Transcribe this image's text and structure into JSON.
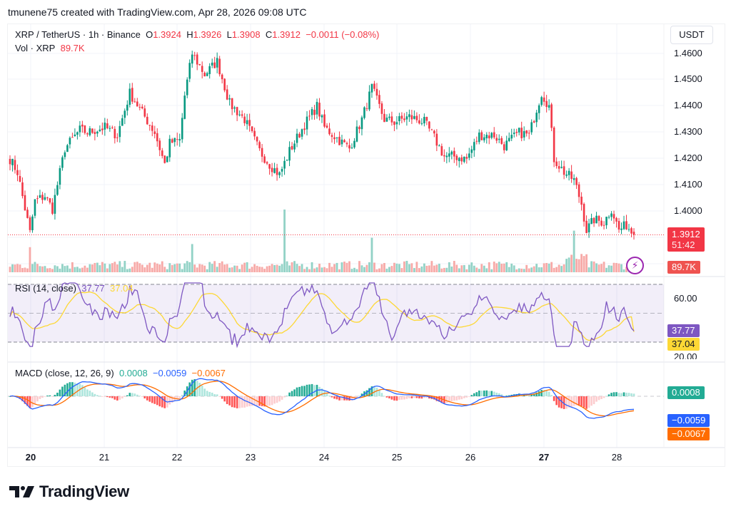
{
  "credit": "tmunene75 created with TradingView.com, Apr 28, 2026 09:08 UTC",
  "header": {
    "symbol_line": "XRP / TetherUS · 1h · Binance",
    "o_label": "O",
    "o_value": "1.3924",
    "h_label": "H",
    "h_value": "1.3926",
    "l_label": "L",
    "l_value": "1.3908",
    "c_label": "C",
    "c_value": "1.3912",
    "change": "−0.0011 (−0.08%)",
    "vol_label": "Vol · XRP",
    "vol_value": "89.7K"
  },
  "currency_button": "USDT",
  "price_axis": [
    "1.4600",
    "1.4500",
    "1.4400",
    "1.4300",
    "1.4200",
    "1.4100",
    "1.4000"
  ],
  "last_price_tag": {
    "price": "1.3912",
    "countdown": "51:42",
    "color": "#f23645"
  },
  "volume_tag": {
    "value": "89.7K",
    "color": "#ef5350"
  },
  "rsi": {
    "label": "RSI (14, close)",
    "value": "37.77",
    "ma_value": "37.04",
    "axis": [
      "60.00",
      "20.00"
    ],
    "tag_rsi_color": "#7e57c2",
    "tag_ma_color": "#fdd835"
  },
  "macd": {
    "label": "MACD (close, 12, 26, 9)",
    "hist_value": "0.0008",
    "macd_value": "−0.0059",
    "signal_value": "−0.0067",
    "hist_color": "#22ab94",
    "macd_color": "#2962ff",
    "signal_color": "#ff6d00"
  },
  "x_axis": [
    {
      "label": "20",
      "bold": true
    },
    {
      "label": "21",
      "bold": false
    },
    {
      "label": "22",
      "bold": false
    },
    {
      "label": "23",
      "bold": false
    },
    {
      "label": "24",
      "bold": false
    },
    {
      "label": "25",
      "bold": false
    },
    {
      "label": "26",
      "bold": false
    },
    {
      "label": "27",
      "bold": true
    },
    {
      "label": "28",
      "bold": false
    }
  ],
  "logo_text": "TradingView",
  "colors": {
    "up": "#089981",
    "down": "#f23645",
    "vol_up": "#92d2c6",
    "vol_down": "#f7a9a7"
  },
  "chart_data": {
    "type": "candlestick",
    "title": "XRP / TetherUS · 1h · Binance",
    "ylabel": "USDT",
    "ylim": [
      1.387,
      1.463
    ],
    "x_ticks": [
      "20",
      "21",
      "22",
      "23",
      "24",
      "25",
      "26",
      "27",
      "28"
    ],
    "close_anchors": [
      [
        0,
        1.42
      ],
      [
        3,
        1.415
      ],
      [
        8,
        1.392
      ],
      [
        10,
        1.404
      ],
      [
        14,
        1.406
      ],
      [
        17,
        1.401
      ],
      [
        22,
        1.424
      ],
      [
        28,
        1.431
      ],
      [
        31,
        1.43
      ],
      [
        38,
        1.432
      ],
      [
        43,
        1.429
      ],
      [
        48,
        1.445
      ],
      [
        52,
        1.439
      ],
      [
        58,
        1.43
      ],
      [
        62,
        1.418
      ],
      [
        64,
        1.426
      ],
      [
        68,
        1.427
      ],
      [
        70,
        1.444
      ],
      [
        73,
        1.46
      ],
      [
        78,
        1.452
      ],
      [
        83,
        1.457
      ],
      [
        88,
        1.441
      ],
      [
        94,
        1.435
      ],
      [
        100,
        1.423
      ],
      [
        104,
        1.418
      ],
      [
        108,
        1.414
      ],
      [
        112,
        1.423
      ],
      [
        118,
        1.433
      ],
      [
        123,
        1.44
      ],
      [
        126,
        1.432
      ],
      [
        132,
        1.427
      ],
      [
        136,
        1.424
      ],
      [
        141,
        1.435
      ],
      [
        145,
        1.447
      ],
      [
        150,
        1.435
      ],
      [
        154,
        1.434
      ],
      [
        160,
        1.436
      ],
      [
        166,
        1.434
      ],
      [
        170,
        1.428
      ],
      [
        174,
        1.421
      ],
      [
        178,
        1.421
      ],
      [
        183,
        1.42
      ],
      [
        188,
        1.429
      ],
      [
        194,
        1.429
      ],
      [
        198,
        1.425
      ],
      [
        204,
        1.43
      ],
      [
        208,
        1.429
      ],
      [
        211,
        1.439
      ],
      [
        213,
        1.445
      ],
      [
        216,
        1.44
      ],
      [
        218,
        1.42
      ],
      [
        222,
        1.415
      ],
      [
        226,
        1.412
      ],
      [
        229,
        1.403
      ],
      [
        231,
        1.393
      ],
      [
        234,
        1.397
      ],
      [
        238,
        1.396
      ],
      [
        241,
        1.401
      ],
      [
        244,
        1.393
      ],
      [
        247,
        1.395
      ],
      [
        250,
        1.3912
      ]
    ],
    "last": {
      "open": 1.3924,
      "high": 1.3926,
      "low": 1.3908,
      "close": 1.3912,
      "change": -0.0011,
      "change_pct": -0.08,
      "volume": "89.7K"
    },
    "volume_spikes": [
      [
        110,
        1.0
      ],
      [
        145,
        0.55
      ],
      [
        226,
        0.55
      ],
      [
        8,
        0.4
      ],
      [
        73,
        0.45
      ]
    ],
    "rsi": {
      "period": 14,
      "last": 37.77,
      "ma_last": 37.04,
      "bands": [
        70,
        30
      ],
      "axis": [
        60,
        20
      ]
    },
    "macd": {
      "fast": 12,
      "slow": 26,
      "signal": 9,
      "hist_last": 0.0008,
      "macd_last": -0.0059,
      "signal_last": -0.0067
    }
  }
}
